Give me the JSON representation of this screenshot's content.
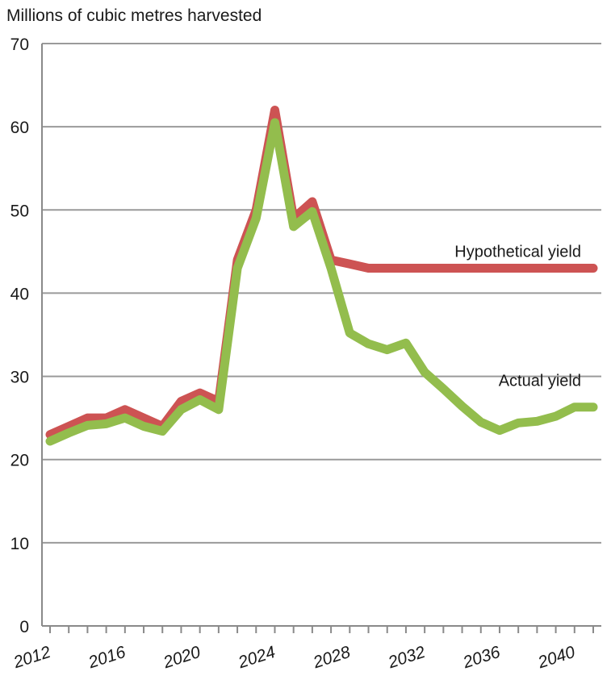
{
  "chart_data": {
    "type": "line",
    "title": "",
    "xlabel": "",
    "ylabel": "Millions of cubic metres harvested",
    "xlim": [
      2012,
      2041
    ],
    "ylim": [
      0,
      70
    ],
    "yticks": [
      0,
      10,
      20,
      30,
      40,
      50,
      60,
      70
    ],
    "xticks": [
      2012,
      2016,
      2020,
      2024,
      2028,
      2032,
      2036,
      2040
    ],
    "grid": "horizontal",
    "x": [
      2012,
      2013,
      2014,
      2015,
      2016,
      2017,
      2018,
      2019,
      2020,
      2021,
      2022,
      2023,
      2024,
      2025,
      2026,
      2027,
      2028,
      2029,
      2030,
      2031,
      2032,
      2033,
      2034,
      2035,
      2036,
      2037,
      2038,
      2039,
      2040,
      2041
    ],
    "series": [
      {
        "name": "Hypothetical yield",
        "color": "#cd5353",
        "values": [
          23,
          24,
          25,
          25,
          26,
          25,
          24,
          27,
          28,
          27,
          44,
          50,
          62,
          49,
          51,
          44,
          43.5,
          43,
          43,
          43,
          43,
          43,
          43,
          43,
          43,
          43,
          43,
          43,
          43,
          43
        ]
      },
      {
        "name": "Actual yield",
        "color": "#93bd4d",
        "values": [
          22.2,
          23.2,
          24.1,
          24.3,
          25,
          24,
          23.4,
          26,
          27.2,
          26,
          43,
          49,
          60.5,
          48,
          49.8,
          43,
          35.2,
          33.9,
          33.2,
          34,
          30.5,
          28.5,
          26.4,
          24.5,
          23.5,
          24.4,
          24.6,
          25.2,
          26.3,
          26.3
        ]
      }
    ]
  }
}
